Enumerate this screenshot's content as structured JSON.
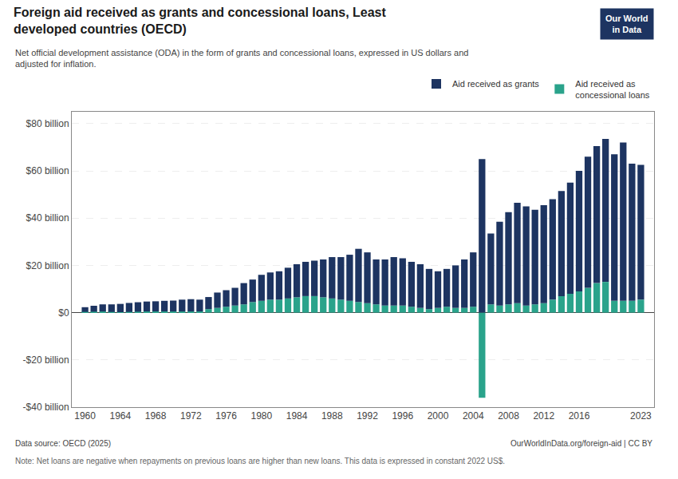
{
  "chart_data": {
    "type": "bar",
    "stacked": true,
    "title": "Foreign aid received as grants and concessional loans, Least\ndeveloped countries (OECD)",
    "subtitle": "Net official development assistance (ODA) in the form of grants and concessional loans, expressed in US dollars and\nadjusted for inflation.",
    "source": "Data source: OECD (2025)",
    "note": "Note: Net loans are negative when repayments on previous loans are higher than new loans. This data is expressed in constant 2022 US$.",
    "annotations": [
      "OurWorldInData.org/foreign-aid | CC BY",
      "Our World\nin Data"
    ],
    "x": [
      1960,
      1961,
      1962,
      1963,
      1964,
      1965,
      1966,
      1967,
      1968,
      1969,
      1970,
      1971,
      1972,
      1973,
      1974,
      1975,
      1976,
      1977,
      1978,
      1979,
      1980,
      1981,
      1982,
      1983,
      1984,
      1985,
      1986,
      1987,
      1988,
      1989,
      1990,
      1991,
      1992,
      1993,
      1994,
      1995,
      1996,
      1997,
      1998,
      1999,
      2000,
      2001,
      2002,
      2003,
      2004,
      2005,
      2006,
      2007,
      2008,
      2009,
      2010,
      2011,
      2012,
      2013,
      2014,
      2015,
      2016,
      2017,
      2018,
      2019,
      2020,
      2021,
      2022,
      2023
    ],
    "series": [
      {
        "name": "Aid received as grants",
        "color": "#1d3461",
        "values": [
          2.0,
          2.5,
          3.0,
          3.2,
          3.5,
          3.8,
          4.0,
          4.2,
          4.3,
          4.5,
          4.6,
          5.0,
          5.2,
          5.0,
          5.1,
          6.5,
          7.0,
          7.5,
          9.0,
          9.5,
          11.0,
          11.5,
          12.0,
          13.0,
          14.0,
          14.5,
          15.0,
          16.0,
          17.5,
          18.0,
          19.5,
          22.5,
          21.5,
          19.0,
          19.5,
          20.5,
          20.0,
          19.0,
          18.5,
          17.0,
          15.5,
          16.0,
          18.0,
          20.5,
          23.0,
          65.0,
          30.0,
          35.5,
          39.0,
          42.5,
          42.0,
          40.0,
          41.5,
          42.5,
          44.5,
          47.0,
          51.0,
          55.5,
          58.0,
          60.5,
          62.0,
          67.0,
          58.0,
          57.0
        ]
      },
      {
        "name": "Aid received as\nconcessional loans",
        "color": "#2aa38b",
        "values": [
          0.3,
          0.4,
          0.5,
          0.3,
          0.2,
          0.3,
          0.4,
          0.5,
          0.5,
          0.5,
          0.5,
          0.5,
          0.5,
          0.5,
          1.5,
          2.0,
          2.5,
          3.0,
          3.5,
          4.5,
          5.0,
          5.5,
          5.5,
          6.0,
          6.5,
          7.0,
          7.0,
          6.5,
          6.0,
          5.5,
          5.0,
          4.5,
          4.0,
          3.5,
          3.0,
          3.0,
          3.0,
          2.5,
          2.0,
          1.5,
          2.0,
          2.5,
          2.0,
          2.0,
          2.5,
          -36.0,
          3.5,
          3.0,
          3.5,
          4.0,
          3.0,
          3.5,
          4.0,
          5.5,
          7.0,
          8.0,
          9.0,
          10.5,
          12.5,
          13.0,
          5.0,
          5.0,
          5.0,
          5.5
        ]
      }
    ],
    "xlim": [
      1958.5,
      2024.5
    ],
    "xticks": [
      1960,
      1964,
      1968,
      1972,
      1976,
      1980,
      1984,
      1988,
      1992,
      1996,
      2000,
      2004,
      2008,
      2012,
      2016,
      2023
    ],
    "ylim": [
      -40,
      85
    ],
    "yticks": [
      {
        "value": -40,
        "label": "-$40 billion"
      },
      {
        "value": -20,
        "label": "-$20 billion"
      },
      {
        "value": 0,
        "label": "$0"
      },
      {
        "value": 20,
        "label": "$20 billion"
      },
      {
        "value": 40,
        "label": "$40 billion"
      },
      {
        "value": 60,
        "label": "$60 billion"
      },
      {
        "value": 80,
        "label": "$80 billion"
      }
    ],
    "grid": true,
    "legend": "top right"
  }
}
